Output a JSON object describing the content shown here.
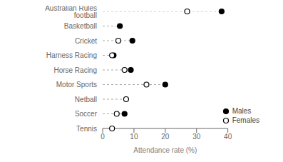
{
  "chart_data": {
    "type": "dot",
    "categories": [
      "Tennis",
      "Soccer",
      "Netball",
      "Motor Sports",
      "Horse Racing",
      "Harness Racing",
      "Cricket",
      "Basketball",
      "Australian Rules football"
    ],
    "series": [
      {
        "name": "Males",
        "color": "#000000",
        "marker": "circle",
        "values": [
          null,
          7.0,
          null,
          20.0,
          9.0,
          3.5,
          9.5,
          5.5,
          38.0
        ]
      },
      {
        "name": "Females",
        "color": "#000000",
        "marker": "open_circle",
        "values": [
          3.0,
          4.5,
          7.5,
          14.0,
          7.0,
          3.0,
          5.0,
          null,
          27.0
        ]
      }
    ],
    "xlabel": "Attendance rate (%)",
    "xlim": [
      0,
      40
    ],
    "xticks": [
      0,
      10,
      20,
      30,
      40
    ],
    "color": "#aaaaaa",
    "line_style": "dashed",
    "legend": "lower right",
    "grid": false
  }
}
